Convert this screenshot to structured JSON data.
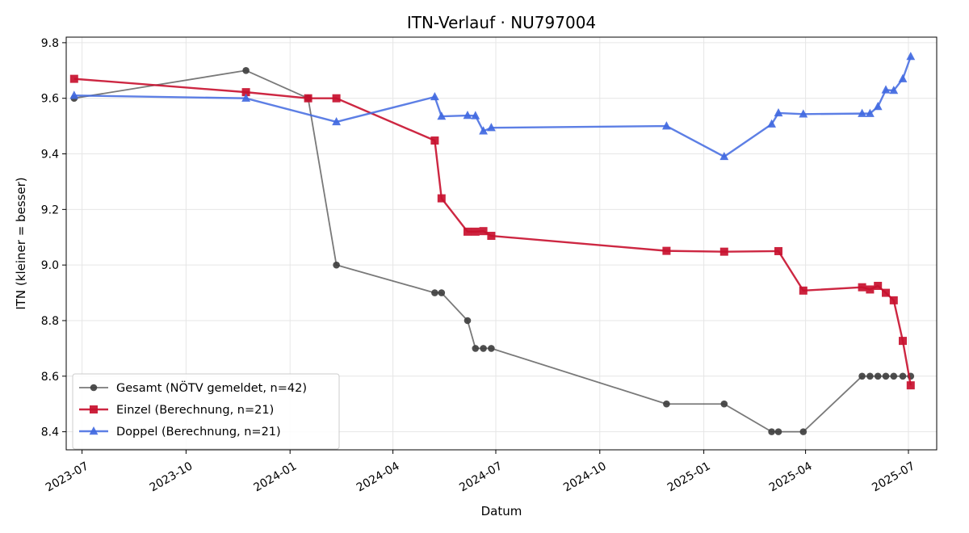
{
  "chart_data": {
    "type": "line",
    "title": "ITN-Verlauf · NU797004",
    "xlabel": "Datum",
    "ylabel": "ITN  (kleiner = besser)",
    "x_type": "date",
    "xlim": [
      "2023-06-17",
      "2025-07-26"
    ],
    "ylim": [
      8.335,
      9.82
    ],
    "x_ticks": [
      {
        "date": "2023-07-01",
        "label": "2023-07"
      },
      {
        "date": "2023-10-01",
        "label": "2023-10"
      },
      {
        "date": "2024-01-01",
        "label": "2024-01"
      },
      {
        "date": "2024-04-01",
        "label": "2024-04"
      },
      {
        "date": "2024-07-01",
        "label": "2024-07"
      },
      {
        "date": "2024-10-01",
        "label": "2024-10"
      },
      {
        "date": "2025-01-01",
        "label": "2025-01"
      },
      {
        "date": "2025-04-01",
        "label": "2025-04"
      },
      {
        "date": "2025-07-01",
        "label": "2025-07"
      }
    ],
    "y_ticks": [
      {
        "value": 8.4,
        "label": "8.4"
      },
      {
        "value": 8.6,
        "label": "8.6"
      },
      {
        "value": 8.8,
        "label": "8.8"
      },
      {
        "value": 9.0,
        "label": "9.0"
      },
      {
        "value": 9.2,
        "label": "9.2"
      },
      {
        "value": 9.4,
        "label": "9.4"
      },
      {
        "value": 9.6,
        "label": "9.6"
      },
      {
        "value": 9.8,
        "label": "9.8"
      }
    ],
    "grid": true,
    "legend_position": "lower-left",
    "series": [
      {
        "name": "Gesamt (NÖTV gemeldet, n=42)",
        "color": "#404040",
        "marker": "circle",
        "points": [
          {
            "x": "2023-06-24",
            "y": 9.6
          },
          {
            "x": "2023-11-23",
            "y": 9.7
          },
          {
            "x": "2024-01-17",
            "y": 9.6
          },
          {
            "x": "2024-02-11",
            "y": 9.0
          },
          {
            "x": "2024-05-08",
            "y": 8.9
          },
          {
            "x": "2024-05-14",
            "y": 8.9
          },
          {
            "x": "2024-06-06",
            "y": 8.8
          },
          {
            "x": "2024-06-13",
            "y": 8.7
          },
          {
            "x": "2024-06-20",
            "y": 8.7
          },
          {
            "x": "2024-06-27",
            "y": 8.7
          },
          {
            "x": "2024-11-29",
            "y": 8.5
          },
          {
            "x": "2025-01-19",
            "y": 8.5
          },
          {
            "x": "2025-03-02",
            "y": 8.4
          },
          {
            "x": "2025-03-08",
            "y": 8.4
          },
          {
            "x": "2025-03-30",
            "y": 8.4
          },
          {
            "x": "2025-05-21",
            "y": 8.6
          },
          {
            "x": "2025-05-28",
            "y": 8.6
          },
          {
            "x": "2025-06-04",
            "y": 8.6
          },
          {
            "x": "2025-06-11",
            "y": 8.6
          },
          {
            "x": "2025-06-18",
            "y": 8.6
          },
          {
            "x": "2025-06-26",
            "y": 8.6
          },
          {
            "x": "2025-07-03",
            "y": 8.6
          }
        ]
      },
      {
        "name": "Einzel (Berechnung, n=21)",
        "color": "#c8102e",
        "marker": "square",
        "points": [
          {
            "x": "2023-06-24",
            "y": 9.67
          },
          {
            "x": "2023-11-23",
            "y": 9.622
          },
          {
            "x": "2024-01-17",
            "y": 9.6
          },
          {
            "x": "2024-02-11",
            "y": 9.6
          },
          {
            "x": "2024-05-08",
            "y": 9.448
          },
          {
            "x": "2024-05-14",
            "y": 9.24
          },
          {
            "x": "2024-06-06",
            "y": 9.12
          },
          {
            "x": "2024-06-13",
            "y": 9.12
          },
          {
            "x": "2024-06-20",
            "y": 9.122
          },
          {
            "x": "2024-06-27",
            "y": 9.105
          },
          {
            "x": "2024-11-29",
            "y": 9.051
          },
          {
            "x": "2025-01-19",
            "y": 9.048
          },
          {
            "x": "2025-03-08",
            "y": 9.05
          },
          {
            "x": "2025-03-30",
            "y": 8.908
          },
          {
            "x": "2025-05-21",
            "y": 8.92
          },
          {
            "x": "2025-05-28",
            "y": 8.912
          },
          {
            "x": "2025-06-04",
            "y": 8.925
          },
          {
            "x": "2025-06-11",
            "y": 8.9
          },
          {
            "x": "2025-06-18",
            "y": 8.873
          },
          {
            "x": "2025-06-26",
            "y": 8.727
          },
          {
            "x": "2025-07-03",
            "y": 8.567
          }
        ]
      },
      {
        "name": "Doppel (Berechnung, n=21)",
        "color": "#4169e1",
        "marker": "triangle",
        "points": [
          {
            "x": "2023-06-24",
            "y": 9.61
          },
          {
            "x": "2023-11-23",
            "y": 9.6
          },
          {
            "x": "2024-02-11",
            "y": 9.515
          },
          {
            "x": "2024-05-08",
            "y": 9.605
          },
          {
            "x": "2024-05-14",
            "y": 9.535
          },
          {
            "x": "2024-06-06",
            "y": 9.538
          },
          {
            "x": "2024-06-13",
            "y": 9.537
          },
          {
            "x": "2024-06-20",
            "y": 9.482
          },
          {
            "x": "2024-06-27",
            "y": 9.494
          },
          {
            "x": "2024-11-29",
            "y": 9.5
          },
          {
            "x": "2025-01-19",
            "y": 9.39
          },
          {
            "x": "2025-03-02",
            "y": 9.507
          },
          {
            "x": "2025-03-08",
            "y": 9.547
          },
          {
            "x": "2025-03-30",
            "y": 9.543
          },
          {
            "x": "2025-05-21",
            "y": 9.545
          },
          {
            "x": "2025-05-28",
            "y": 9.545
          },
          {
            "x": "2025-06-04",
            "y": 9.57
          },
          {
            "x": "2025-06-11",
            "y": 9.63
          },
          {
            "x": "2025-06-18",
            "y": 9.628
          },
          {
            "x": "2025-06-26",
            "y": 9.67
          },
          {
            "x": "2025-07-03",
            "y": 9.75
          }
        ]
      }
    ]
  }
}
